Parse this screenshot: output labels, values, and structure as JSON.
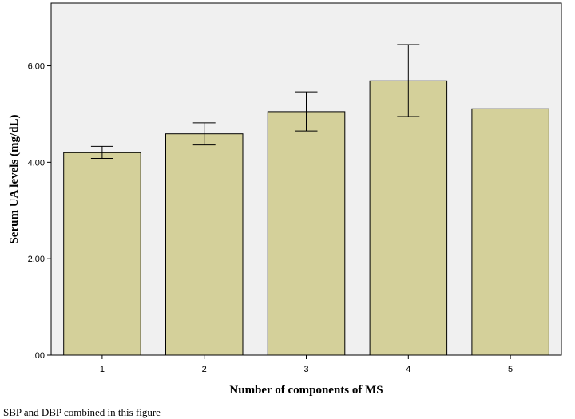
{
  "chart_data": {
    "type": "bar",
    "categories": [
      "1",
      "2",
      "3",
      "4",
      "5"
    ],
    "values": [
      4.2,
      4.59,
      5.05,
      5.69,
      5.11
    ],
    "error_low": [
      4.08,
      4.36,
      4.65,
      4.95,
      null
    ],
    "error_high": [
      4.33,
      4.82,
      5.46,
      6.44,
      null
    ],
    "xlabel": "Number of components of MS",
    "ylabel": "Serum UA levels (mg/dL)",
    "ylim": [
      0,
      7.3
    ],
    "yticks": [
      0,
      2,
      4,
      6
    ],
    "ytick_labels": [
      ".00",
      "2.00",
      "4.00",
      "6.00"
    ],
    "grid": false,
    "colors": {
      "bar_fill": "#d4d09a",
      "bar_stroke": "#000000",
      "plot_background": "#f0f0f0",
      "frame": "#000000"
    }
  },
  "footnote": "SBP and DBP combined in this figure"
}
